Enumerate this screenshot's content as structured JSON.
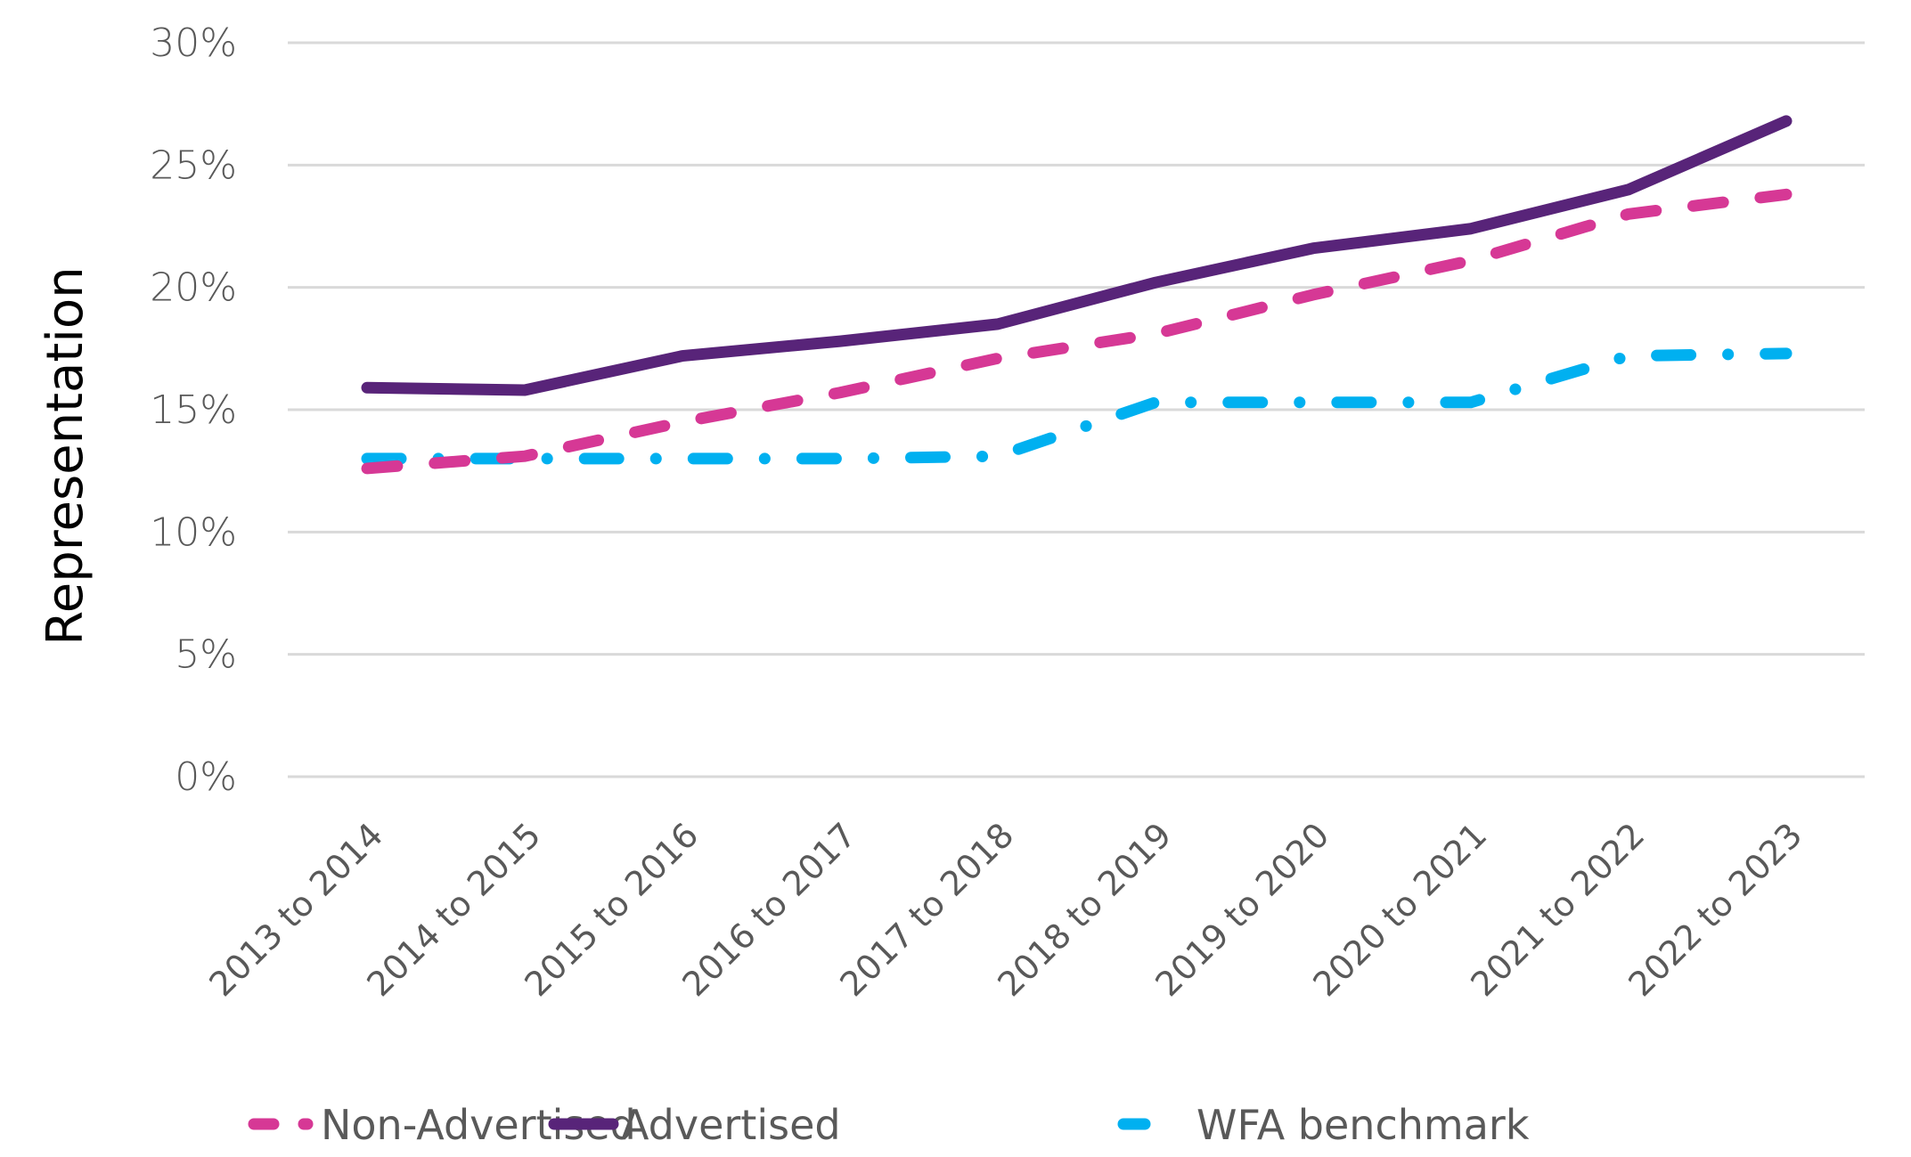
{
  "chart_data": {
    "type": "line",
    "title": "",
    "xlabel": "",
    "ylabel": "Representation",
    "ylim": [
      0,
      30
    ],
    "yticks": [
      0,
      5,
      10,
      15,
      20,
      25,
      30
    ],
    "ytick_labels": [
      "0%",
      "5%",
      "10%",
      "15%",
      "20%",
      "25%",
      "30%"
    ],
    "grid": true,
    "legend_position": "bottom",
    "categories": [
      "2013 to 2014",
      "2014 to 2015",
      "2015 to 2016",
      "2016 to 2017",
      "2017 to 2018",
      "2018 to 2019",
      "2019 to 2020",
      "2020 to 2021",
      "2021 to 2022",
      "2022 to 2023"
    ],
    "series": [
      {
        "name": "Non-Advertised",
        "style": "dashed",
        "color": "#D63895",
        "values": [
          12.6,
          13.1,
          14.5,
          15.7,
          17.1,
          18.1,
          19.7,
          21.1,
          23.0,
          23.8
        ]
      },
      {
        "name": "Advertised",
        "style": "solid",
        "color": "#582479",
        "values": [
          15.9,
          15.8,
          17.2,
          17.8,
          18.5,
          20.2,
          21.6,
          22.4,
          24.0,
          26.8
        ]
      },
      {
        "name": "WFA benchmark",
        "style": "dash-dot",
        "color": "#00B0F0",
        "values": [
          13.0,
          13.0,
          13.0,
          13.0,
          13.1,
          15.3,
          15.3,
          15.3,
          17.2,
          17.3
        ]
      }
    ]
  }
}
